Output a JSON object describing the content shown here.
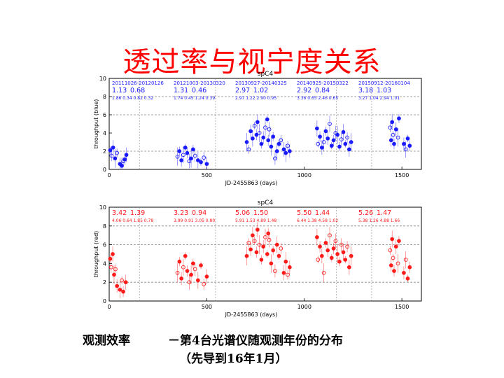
{
  "slide": {
    "title": "透过率与视宁度关系",
    "caption_left": "观测效率",
    "caption_right": "－第4台光谱仪随观测年份的分布",
    "caption_sub": "（先导到16年1月）"
  },
  "colors": {
    "blue": "#1a1aff",
    "red": "#ff1a1a",
    "axis": "#000000",
    "grid": "#888888"
  },
  "chart_data": [
    {
      "type": "scatter",
      "title": "spC4",
      "xlabel": "JD-2455863 (days)",
      "ylabel": "throughput (blue)",
      "color": "#1a1aff",
      "xlim": [
        0,
        1600
      ],
      "ylim": [
        0,
        10
      ],
      "xticks": [
        0,
        500,
        1000,
        1500
      ],
      "yticks": [
        0,
        2,
        4,
        6,
        8,
        10
      ],
      "ref_lines": [
        2,
        6,
        8
      ],
      "season_dividers": [
        155,
        545,
        1165,
        1345
      ],
      "seasons": [
        {
          "range": "20111026-20120126",
          "stat1": "1.13",
          "stat2": "0.68",
          "sub": "1.86 0.34 0.82 0.32"
        },
        {
          "range": "20121003-20130320",
          "stat1": "1.31",
          "stat2": "0.46",
          "sub": "1.74 0.45 1.24 0.39"
        },
        {
          "range": "20130927-20140325",
          "stat1": "2.97",
          "stat2": "1.02",
          "sub": "2.97 1.22 2.90 0.95"
        },
        {
          "range": "20140925-20150322",
          "stat1": "2.92",
          "stat2": "0.84",
          "sub": "3.36 0.65 2.46 0.65"
        },
        {
          "range": "20150912-20160104",
          "stat1": "3.18",
          "stat2": "1.03",
          "sub": "3.27 1.04 2.94 1.01"
        }
      ],
      "points": [
        [
          5,
          2.1
        ],
        [
          12,
          1.5
        ],
        [
          20,
          2.4
        ],
        [
          30,
          1.2
        ],
        [
          40,
          1.8
        ],
        [
          55,
          0.6
        ],
        [
          65,
          0.4
        ],
        [
          72,
          0.9
        ],
        [
          80,
          1.1
        ],
        [
          88,
          1.6
        ],
        [
          350,
          1.4
        ],
        [
          360,
          2.0
        ],
        [
          370,
          1.0
        ],
        [
          380,
          1.6
        ],
        [
          390,
          2.4
        ],
        [
          400,
          1.8
        ],
        [
          410,
          0.9
        ],
        [
          420,
          1.2
        ],
        [
          430,
          2.2
        ],
        [
          440,
          1.5
        ],
        [
          455,
          1.0
        ],
        [
          470,
          0.8
        ],
        [
          485,
          1.3
        ],
        [
          500,
          0.6
        ],
        [
          705,
          3.0
        ],
        [
          715,
          2.2
        ],
        [
          725,
          4.2
        ],
        [
          735,
          3.4
        ],
        [
          745,
          4.8
        ],
        [
          755,
          3.8
        ],
        [
          760,
          5.2
        ],
        [
          770,
          4.0
        ],
        [
          780,
          2.8
        ],
        [
          790,
          3.5
        ],
        [
          800,
          4.6
        ],
        [
          810,
          5.5
        ],
        [
          815,
          3.2
        ],
        [
          820,
          4.4
        ],
        [
          830,
          2.5
        ],
        [
          840,
          3.6
        ],
        [
          850,
          1.2
        ],
        [
          860,
          2.0
        ],
        [
          870,
          2.8
        ],
        [
          880,
          3.2
        ],
        [
          895,
          2.2
        ],
        [
          905,
          1.8
        ],
        [
          915,
          2.6
        ],
        [
          925,
          2.0
        ],
        [
          1065,
          4.5
        ],
        [
          1070,
          2.8
        ],
        [
          1080,
          3.6
        ],
        [
          1090,
          2.4
        ],
        [
          1100,
          3.0
        ],
        [
          1110,
          4.2
        ],
        [
          1120,
          3.4
        ],
        [
          1130,
          5.0
        ],
        [
          1140,
          2.6
        ],
        [
          1150,
          3.2
        ],
        [
          1160,
          4.0
        ],
        [
          1170,
          3.8
        ],
        [
          1180,
          2.5
        ],
        [
          1190,
          3.3
        ],
        [
          1200,
          4.1
        ],
        [
          1210,
          2.8
        ],
        [
          1220,
          3.5
        ],
        [
          1230,
          2.2
        ],
        [
          1240,
          3.0
        ],
        [
          1440,
          4.6
        ],
        [
          1445,
          3.2
        ],
        [
          1450,
          5.2
        ],
        [
          1455,
          3.8
        ],
        [
          1460,
          2.8
        ],
        [
          1470,
          4.4
        ],
        [
          1480,
          3.5
        ],
        [
          1485,
          5.6
        ],
        [
          1510,
          2.8
        ],
        [
          1520,
          2.2
        ],
        [
          1530,
          3.4
        ],
        [
          1540,
          2.6
        ]
      ]
    },
    {
      "type": "scatter",
      "title": "spC4",
      "xlabel": "JD-2455863 (days)",
      "ylabel": "throughput (red)",
      "color": "#ff1a1a",
      "xlim": [
        0,
        1600
      ],
      "ylim": [
        0,
        10
      ],
      "xticks": [
        0,
        500,
        1000,
        1500
      ],
      "yticks": [
        0,
        2,
        4,
        6,
        8,
        10
      ],
      "ref_lines": [
        2,
        6,
        8
      ],
      "season_dividers": [
        155,
        545,
        1165,
        1345
      ],
      "seasons": [
        {
          "stat1": "3.42",
          "stat2": "1.39",
          "sub": "4.06 0.64 1.85 0.78"
        },
        {
          "stat1": "3.23",
          "stat2": "0.94",
          "sub": "3.99 0.91 3.05 0.80"
        },
        {
          "stat1": "5.06",
          "stat2": "1.50",
          "sub": "5.91 1.53 4.89 1.48"
        },
        {
          "stat1": "5.50",
          "stat2": "1.44",
          "sub": "6.44 1.38 4.58 1.02"
        },
        {
          "stat1": "5.26",
          "stat2": "1.47",
          "sub": "5.38 1.26 4.88 1.66"
        }
      ],
      "points": [
        [
          5,
          4.5
        ],
        [
          10,
          3.6
        ],
        [
          18,
          5.0
        ],
        [
          25,
          2.8
        ],
        [
          32,
          3.4
        ],
        [
          40,
          1.6
        ],
        [
          55,
          1.2
        ],
        [
          65,
          2.2
        ],
        [
          72,
          1.0
        ],
        [
          85,
          2.0
        ],
        [
          350,
          3.0
        ],
        [
          360,
          4.2
        ],
        [
          370,
          2.4
        ],
        [
          380,
          3.6
        ],
        [
          390,
          4.8
        ],
        [
          400,
          3.2
        ],
        [
          410,
          2.0
        ],
        [
          420,
          2.8
        ],
        [
          430,
          4.0
        ],
        [
          440,
          3.4
        ],
        [
          455,
          2.2
        ],
        [
          470,
          3.8
        ],
        [
          485,
          1.8
        ],
        [
          500,
          2.6
        ],
        [
          705,
          4.8
        ],
        [
          715,
          6.2
        ],
        [
          725,
          5.5
        ],
        [
          735,
          7.0
        ],
        [
          745,
          6.4
        ],
        [
          755,
          5.2
        ],
        [
          760,
          7.6
        ],
        [
          770,
          6.0
        ],
        [
          780,
          4.4
        ],
        [
          790,
          5.8
        ],
        [
          800,
          6.8
        ],
        [
          810,
          5.0
        ],
        [
          815,
          7.2
        ],
        [
          820,
          6.5
        ],
        [
          830,
          4.0
        ],
        [
          840,
          5.4
        ],
        [
          850,
          3.2
        ],
        [
          860,
          6.0
        ],
        [
          870,
          4.8
        ],
        [
          880,
          5.6
        ],
        [
          895,
          3.0
        ],
        [
          905,
          4.2
        ],
        [
          915,
          2.8
        ],
        [
          925,
          3.6
        ],
        [
          1065,
          6.8
        ],
        [
          1070,
          4.4
        ],
        [
          1080,
          5.8
        ],
        [
          1090,
          4.8
        ],
        [
          1100,
          3.0
        ],
        [
          1110,
          6.2
        ],
        [
          1120,
          5.4
        ],
        [
          1130,
          7.0
        ],
        [
          1140,
          4.6
        ],
        [
          1150,
          5.6
        ],
        [
          1160,
          6.4
        ],
        [
          1170,
          5.0
        ],
        [
          1180,
          4.2
        ],
        [
          1190,
          6.0
        ],
        [
          1200,
          5.2
        ],
        [
          1210,
          4.4
        ],
        [
          1220,
          5.8
        ],
        [
          1230,
          3.6
        ],
        [
          1240,
          4.8
        ],
        [
          1440,
          5.4
        ],
        [
          1445,
          3.8
        ],
        [
          1450,
          6.6
        ],
        [
          1455,
          4.6
        ],
        [
          1460,
          3.2
        ],
        [
          1470,
          5.8
        ],
        [
          1480,
          4.0
        ],
        [
          1485,
          6.4
        ],
        [
          1510,
          3.0
        ],
        [
          1520,
          4.4
        ],
        [
          1530,
          2.4
        ],
        [
          1540,
          3.6
        ]
      ]
    }
  ]
}
